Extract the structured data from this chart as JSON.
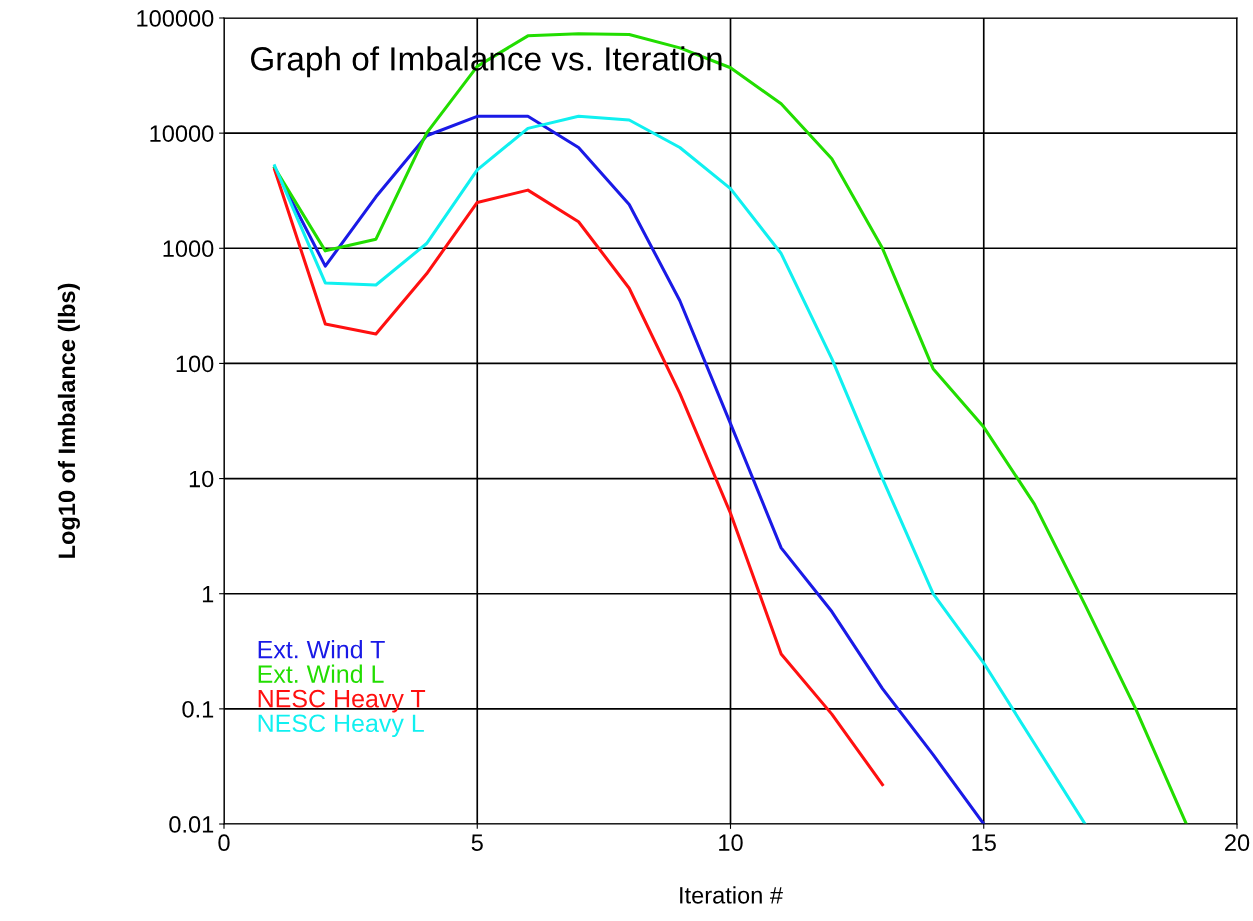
{
  "chart_data": {
    "type": "line",
    "title": "Graph of Imbalance vs. Iteration",
    "xlabel": "Iteration #",
    "ylabel": "Log10 of Imbalance (lbs)",
    "log": "y",
    "grid": true,
    "legend": "bottom left",
    "marker": "none",
    "line_style": "solid",
    "xlim": [
      0,
      20
    ],
    "xticks": [
      0,
      5,
      10,
      15,
      20
    ],
    "ylim": [
      0.01,
      100000
    ],
    "yticks": [
      0.01,
      0.1,
      1,
      10,
      100,
      1000,
      10000,
      100000
    ],
    "series": [
      {
        "name": "Ext. Wind T",
        "color": "#1a1ae6",
        "x": [
          1,
          2,
          3,
          4,
          5,
          6,
          7,
          8,
          9,
          10,
          11,
          12,
          13,
          14,
          15
        ],
        "values": [
          5000,
          700,
          2800,
          9500,
          14000,
          14000,
          7500,
          2400,
          350,
          30,
          2.5,
          0.7,
          0.15,
          0.04,
          0.01
        ]
      },
      {
        "name": "Ext. Wind L",
        "color": "#22dd00",
        "x": [
          1,
          2,
          3,
          4,
          5,
          6,
          7,
          8,
          9,
          10,
          11,
          12,
          13,
          14,
          15,
          16,
          17,
          18,
          19
        ],
        "values": [
          5000,
          950,
          1200,
          10000,
          38000,
          70000,
          73000,
          72000,
          55000,
          37000,
          18000,
          6000,
          1000,
          90,
          28,
          6,
          0.8,
          0.1,
          0.01
        ]
      },
      {
        "name": "NESC Heavy T",
        "color": "#ff1010",
        "x": [
          1,
          2,
          3,
          4,
          5,
          6,
          7,
          8,
          9,
          10,
          11,
          12,
          13
        ],
        "values": [
          4800,
          220,
          180,
          600,
          2500,
          3200,
          1700,
          450,
          55,
          5,
          0.3,
          0.09,
          0.022
        ]
      },
      {
        "name": "NESC Heavy L",
        "color": "#10f0f0",
        "x": [
          1,
          2,
          3,
          4,
          5,
          6,
          7,
          8,
          9,
          10,
          11,
          12,
          13,
          14,
          15,
          16,
          17
        ],
        "values": [
          5200,
          500,
          480,
          1100,
          4800,
          11000,
          14000,
          13000,
          7500,
          3300,
          900,
          110,
          10,
          1,
          0.25,
          0.05,
          0.01
        ]
      }
    ]
  }
}
